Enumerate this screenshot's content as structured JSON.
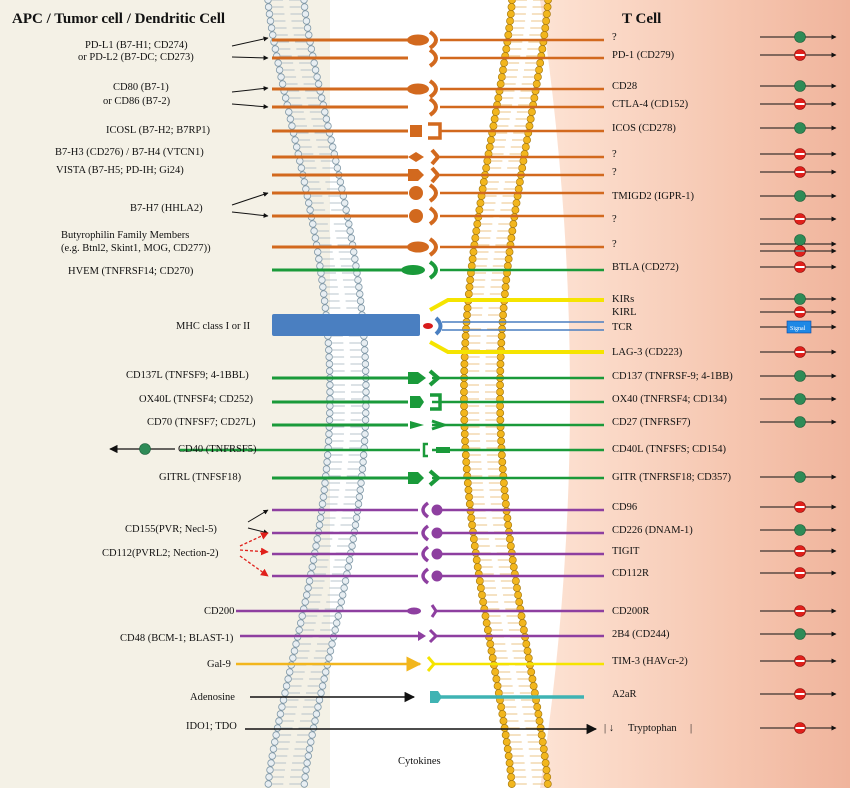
{
  "header": {
    "left_title": "APC / Tumor cell / Dendritic Cell",
    "right_title": "T Cell"
  },
  "footer": {
    "cytokines": "Cytokines"
  },
  "signal_label": "Signal",
  "colors": {
    "orange": "#d2691e",
    "green": "#1a9a3a",
    "purple": "#8e3fa0",
    "yellow": "#f5e400",
    "blue": "#4a7fc1",
    "teal": "#3fb3b3",
    "gold": "#f2b61d",
    "black": "#111111",
    "green_dot": "#2e8b57",
    "red_dot": "#e0201b"
  },
  "ligands": [
    {
      "id": "pdl1",
      "lines": [
        "PD-L1 (B7-H1; CD274)",
        "or PD-L2 (B7-DC; CD273)"
      ]
    },
    {
      "id": "cd80",
      "lines": [
        "CD80 (B7-1)",
        "or CD86 (B7-2)"
      ]
    },
    {
      "id": "icosl",
      "lines": [
        "ICOSL (B7-H2; B7RP1)"
      ]
    },
    {
      "id": "b7h3",
      "lines": [
        "B7-H3 (CD276) / B7-H4 (VTCN1)"
      ]
    },
    {
      "id": "vista",
      "lines": [
        "VISTA (B7-H5; PD-IH; Gi24)"
      ]
    },
    {
      "id": "b7h7",
      "lines": [
        "B7-H7 (HHLA2)"
      ]
    },
    {
      "id": "btn",
      "lines": [
        "Butyrophilin Family Members",
        "(e.g. Btnl2, Skint1, MOG, CD277))"
      ]
    },
    {
      "id": "hvem",
      "lines": [
        "HVEM (TNFRSF14; CD270)"
      ]
    },
    {
      "id": "mhc",
      "lines": [
        "MHC class I or II"
      ]
    },
    {
      "id": "cd137l",
      "lines": [
        "CD137L (TNFSF9; 4-1BBL)"
      ]
    },
    {
      "id": "ox40l",
      "lines": [
        "OX40L (TNFSF4; CD252)"
      ]
    },
    {
      "id": "cd70",
      "lines": [
        "CD70 (TNFSF7; CD27L)"
      ]
    },
    {
      "id": "cd40",
      "lines": [
        "CD40 (TNFRSF5)"
      ]
    },
    {
      "id": "gitrl",
      "lines": [
        "GITRL (TNFSF18)"
      ]
    },
    {
      "id": "cd155",
      "lines": [
        "CD155(PVR; Necl-5)"
      ]
    },
    {
      "id": "cd112",
      "lines": [
        "CD112(PVRL2; Nection-2)"
      ]
    },
    {
      "id": "cd200",
      "lines": [
        "CD200"
      ]
    },
    {
      "id": "cd48",
      "lines": [
        "CD48 (BCM-1; BLAST-1)"
      ]
    },
    {
      "id": "gal9",
      "lines": [
        "Gal-9"
      ]
    },
    {
      "id": "adenosine",
      "lines": [
        "Adenosine"
      ]
    },
    {
      "id": "ido",
      "lines": [
        "IDO1; TDO"
      ]
    }
  ],
  "receptors": [
    {
      "id": "q1",
      "label": "?",
      "sign": "+"
    },
    {
      "id": "pd1",
      "label": "PD-1 (CD279)",
      "sign": "-"
    },
    {
      "id": "cd28",
      "label": "CD28",
      "sign": "+"
    },
    {
      "id": "ctla4",
      "label": "CTLA-4 (CD152)",
      "sign": "-"
    },
    {
      "id": "icos",
      "label": "ICOS (CD278)",
      "sign": "+"
    },
    {
      "id": "q2",
      "label": "?",
      "sign": "-"
    },
    {
      "id": "q3",
      "label": "?",
      "sign": "-"
    },
    {
      "id": "tmigd2",
      "label": "TMIGD2 (IGPR-1)",
      "sign": "+"
    },
    {
      "id": "q4",
      "label": "?",
      "sign": "-"
    },
    {
      "id": "q5",
      "label": "?",
      "sign": "+-"
    },
    {
      "id": "btla",
      "label": "BTLA (CD272)",
      "sign": "-"
    },
    {
      "id": "kirs",
      "label": "KIRs",
      "sign": "+"
    },
    {
      "id": "kirl",
      "label": "KIRL",
      "sign": "-"
    },
    {
      "id": "tcr",
      "label": "TCR",
      "sign": "signal"
    },
    {
      "id": "lag3",
      "label": "LAG-3 (CD223)",
      "sign": "-"
    },
    {
      "id": "cd137",
      "label": "CD137 (TNFRSF-9; 4-1BB)",
      "sign": "+"
    },
    {
      "id": "ox40",
      "label": "OX40 (TNFRSF4; CD134)",
      "sign": "+"
    },
    {
      "id": "cd27",
      "label": "CD27 (TNFRSF7)",
      "sign": "+"
    },
    {
      "id": "cd40l",
      "label": "CD40L (TNFSFS; CD154)",
      "sign": ""
    },
    {
      "id": "gitr",
      "label": "GITR (TNFRSF18; CD357)",
      "sign": "+"
    },
    {
      "id": "cd96",
      "label": "CD96",
      "sign": "-"
    },
    {
      "id": "cd226",
      "label": "CD226 (DNAM-1)",
      "sign": "+"
    },
    {
      "id": "tigit",
      "label": "TIGIT",
      "sign": "-"
    },
    {
      "id": "cd112r",
      "label": "CD112R",
      "sign": "-"
    },
    {
      "id": "cd200r",
      "label": "CD200R",
      "sign": "-"
    },
    {
      "id": "2b4",
      "label": "2B4 (CD244)",
      "sign": "+"
    },
    {
      "id": "tim3",
      "label": "TIM-3 (HAVcr-2)",
      "sign": "-"
    },
    {
      "id": "a2ar",
      "label": "A2aR",
      "sign": "-"
    },
    {
      "id": "trp",
      "label": "Tryptophan",
      "sign": "-"
    }
  ]
}
